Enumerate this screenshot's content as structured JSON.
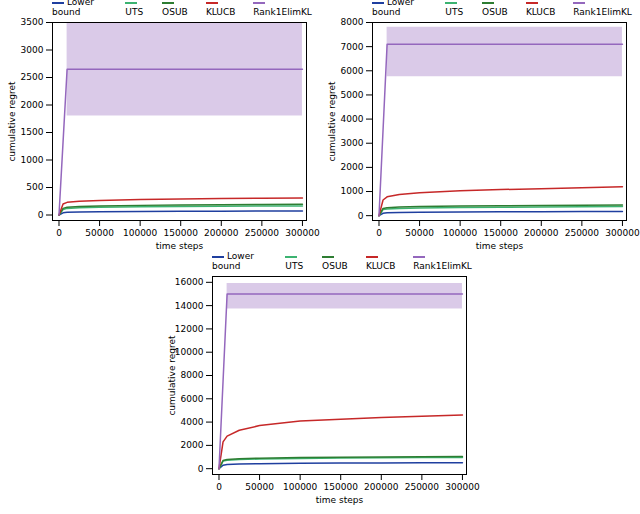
{
  "chart_data": [
    {
      "type": "line",
      "x_label": "time steps",
      "y_label": "cumulative regret",
      "legend": "top",
      "x": [
        0,
        5000,
        10000,
        25000,
        50000,
        100000,
        150000,
        200000,
        250000,
        300000
      ],
      "xlim": [
        -8000,
        305000
      ],
      "xticks": [
        0,
        50000,
        100000,
        150000,
        200000,
        250000,
        300000
      ],
      "ylim": [
        -100,
        3500
      ],
      "yticks": [
        0,
        500,
        1000,
        1500,
        2000,
        2500,
        3000,
        3500
      ],
      "series": [
        {
          "name": "Lower bound",
          "color": "#1f3f9f",
          "values": [
            0,
            40,
            50,
            55,
            60,
            65,
            68,
            70,
            72,
            73
          ]
        },
        {
          "name": "UTS",
          "color": "#3cb371",
          "values": [
            0,
            100,
            120,
            130,
            140,
            150,
            155,
            160,
            163,
            165
          ]
        },
        {
          "name": "OSUB",
          "color": "#2e7d32",
          "values": [
            0,
            120,
            140,
            155,
            165,
            175,
            180,
            185,
            190,
            195
          ]
        },
        {
          "name": "KLUCB",
          "color": "#c62828",
          "values": [
            0,
            200,
            230,
            250,
            265,
            280,
            290,
            300,
            305,
            310
          ]
        },
        {
          "name": "Rank1ElimKL",
          "color": "#9467bd",
          "values": [
            0,
            1325,
            2650,
            2650,
            2650,
            2650,
            2650,
            2650,
            2650,
            2650
          ],
          "band_lower": [
            null,
            null,
            1800,
            1800,
            1800,
            1800,
            1800,
            1800,
            1800,
            1800
          ],
          "band_upper": [
            null,
            null,
            3500,
            3500,
            3500,
            3500,
            3500,
            3500,
            3500,
            3500
          ]
        }
      ]
    },
    {
      "type": "line",
      "x_label": "time steps",
      "y_label": "cumulative regret",
      "legend": "top",
      "x": [
        0,
        5000,
        10000,
        25000,
        50000,
        100000,
        150000,
        200000,
        250000,
        300000
      ],
      "xlim": [
        -8000,
        305000
      ],
      "xticks": [
        0,
        50000,
        100000,
        150000,
        200000,
        250000,
        300000
      ],
      "ylim": [
        -200,
        8000
      ],
      "yticks": [
        0,
        1000,
        2000,
        3000,
        4000,
        5000,
        6000,
        7000,
        8000
      ],
      "series": [
        {
          "name": "Lower bound",
          "color": "#1f3f9f",
          "values": [
            0,
            100,
            120,
            135,
            145,
            155,
            160,
            165,
            170,
            175
          ]
        },
        {
          "name": "UTS",
          "color": "#3cb371",
          "values": [
            0,
            250,
            280,
            300,
            320,
            340,
            350,
            360,
            370,
            380
          ]
        },
        {
          "name": "OSUB",
          "color": "#2e7d32",
          "values": [
            0,
            300,
            330,
            360,
            380,
            400,
            410,
            420,
            430,
            440
          ]
        },
        {
          "name": "KLUCB",
          "color": "#c62828",
          "values": [
            0,
            650,
            780,
            880,
            950,
            1030,
            1080,
            1120,
            1160,
            1200
          ]
        },
        {
          "name": "Rank1ElimKL",
          "color": "#9467bd",
          "values": [
            0,
            3550,
            7100,
            7100,
            7100,
            7100,
            7100,
            7100,
            7100,
            7100
          ],
          "band_lower": [
            null,
            null,
            5750,
            5750,
            5750,
            5750,
            5750,
            5750,
            5750,
            5750
          ],
          "band_upper": [
            null,
            null,
            7800,
            7800,
            7800,
            7800,
            7800,
            7800,
            7800,
            7800
          ]
        }
      ]
    },
    {
      "type": "line",
      "x_label": "time steps",
      "y_label": "cumulative regret",
      "legend": "top",
      "x": [
        0,
        5000,
        10000,
        25000,
        50000,
        100000,
        150000,
        200000,
        250000,
        300000
      ],
      "xlim": [
        -8000,
        305000
      ],
      "xticks": [
        0,
        50000,
        100000,
        150000,
        200000,
        250000,
        300000
      ],
      "ylim": [
        -500,
        16500
      ],
      "yticks": [
        0,
        2000,
        4000,
        6000,
        8000,
        10000,
        12000,
        14000,
        16000
      ],
      "series": [
        {
          "name": "Lower bound",
          "color": "#1f3f9f",
          "values": [
            0,
            300,
            360,
            400,
            430,
            460,
            480,
            490,
            500,
            510
          ]
        },
        {
          "name": "UTS",
          "color": "#3cb371",
          "values": [
            0,
            650,
            720,
            780,
            830,
            880,
            910,
            930,
            950,
            970
          ]
        },
        {
          "name": "OSUB",
          "color": "#2e7d32",
          "values": [
            0,
            700,
            780,
            850,
            900,
            950,
            980,
            1010,
            1030,
            1050
          ]
        },
        {
          "name": "KLUCB",
          "color": "#c62828",
          "values": [
            0,
            2300,
            2800,
            3300,
            3700,
            4100,
            4250,
            4400,
            4500,
            4600
          ]
        },
        {
          "name": "Rank1ElimKL",
          "color": "#9467bd",
          "values": [
            0,
            7500,
            15000,
            15000,
            15000,
            15000,
            15000,
            15000,
            15000,
            15000
          ],
          "band_lower": [
            null,
            null,
            13700,
            13700,
            13700,
            13700,
            13700,
            13700,
            13700,
            13700
          ],
          "band_upper": [
            null,
            null,
            15900,
            15900,
            15900,
            15900,
            15900,
            15900,
            15900,
            15900
          ]
        }
      ]
    }
  ]
}
